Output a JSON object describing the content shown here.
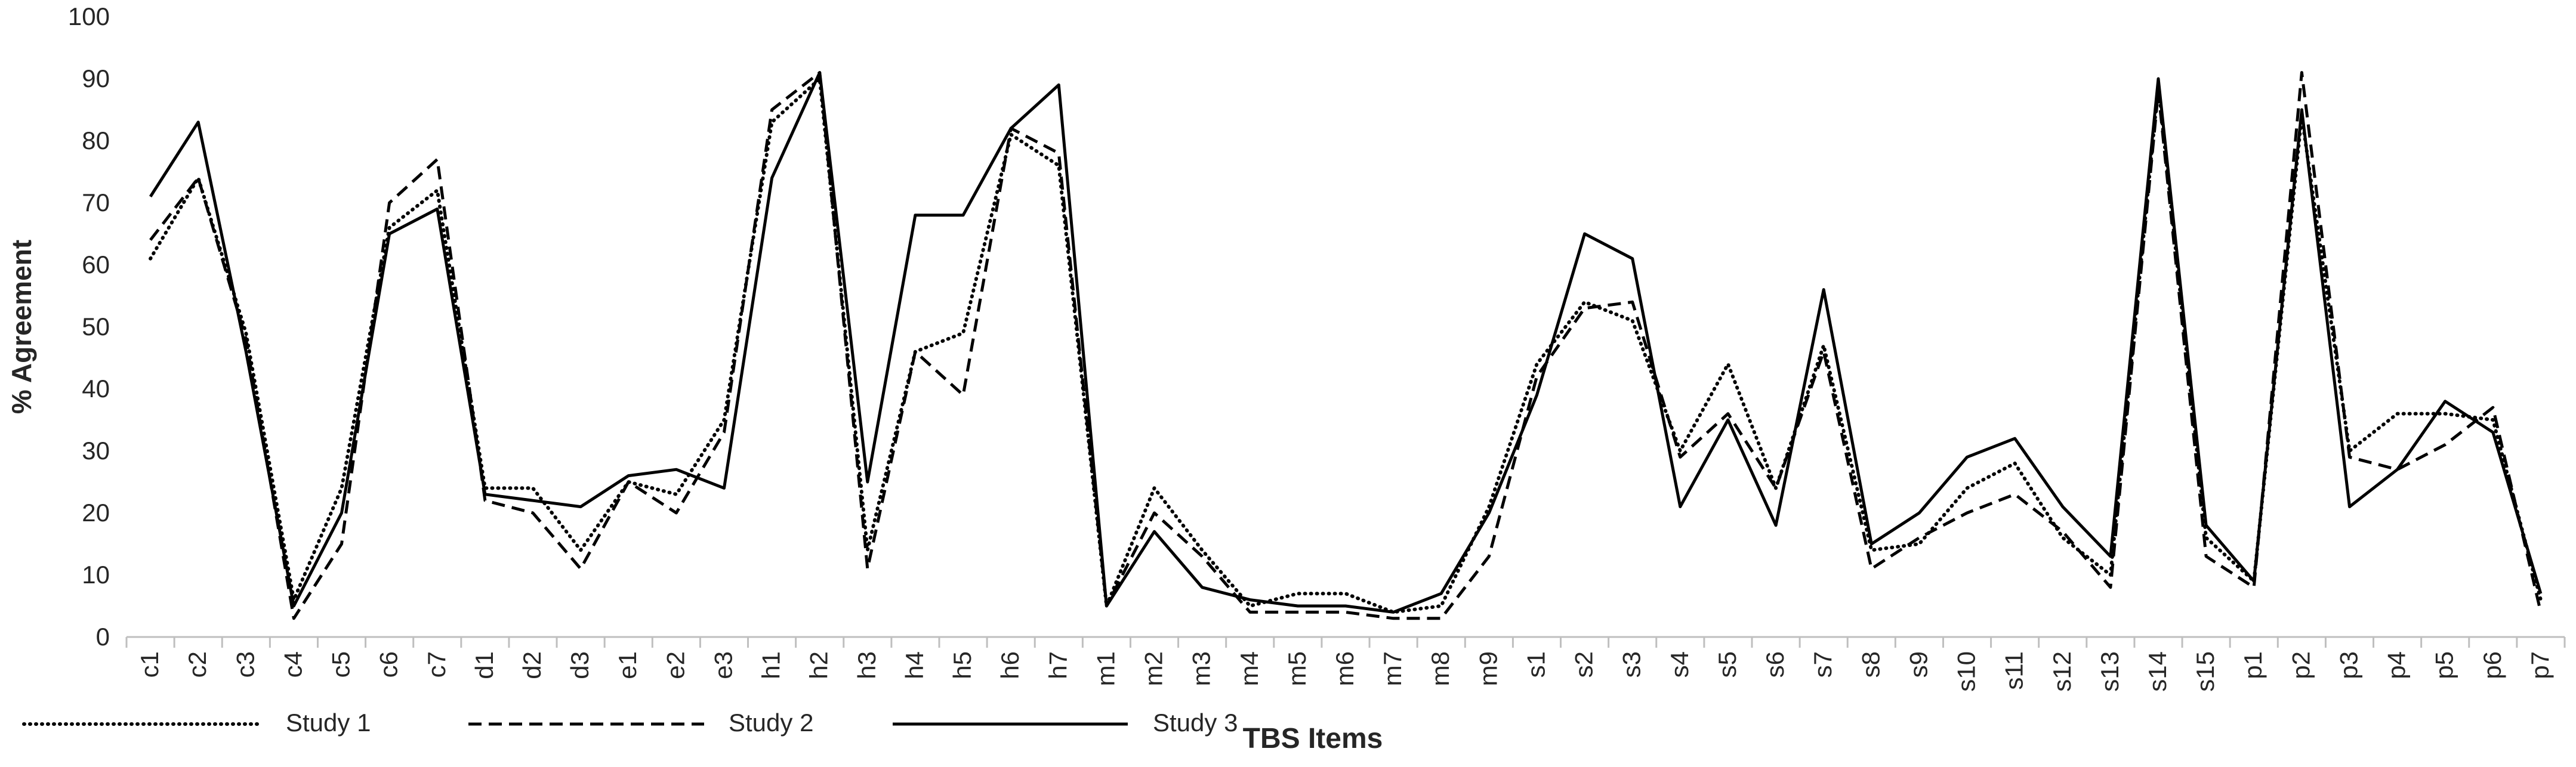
{
  "chart_data": {
    "type": "line",
    "title": "",
    "xlabel": "TBS Items",
    "ylabel": "% Agreement",
    "ylim": [
      0,
      100
    ],
    "yticks": [
      0,
      10,
      20,
      30,
      40,
      50,
      60,
      70,
      80,
      90,
      100
    ],
    "grid": false,
    "legend": "bottom-left",
    "categories": [
      "c1",
      "c2",
      "c3",
      "c4",
      "c5",
      "c6",
      "c7",
      "d1",
      "d2",
      "d3",
      "e1",
      "e2",
      "e3",
      "h1",
      "h2",
      "h3",
      "h4",
      "h5",
      "h6",
      "h7",
      "m1",
      "m2",
      "m3",
      "m4",
      "m5",
      "m6",
      "m7",
      "m8",
      "m9",
      "s1",
      "s2",
      "s3",
      "s4",
      "s5",
      "s6",
      "s7",
      "s8",
      "s9",
      "s10",
      "s11",
      "s12",
      "s13",
      "s14",
      "s15",
      "p1",
      "p2",
      "p3",
      "p4",
      "p5",
      "p6",
      "p7"
    ],
    "series": [
      {
        "name": "Study 1",
        "dash": "dotted",
        "values": [
          61,
          74,
          49,
          6,
          24,
          66,
          72,
          24,
          24,
          14,
          25,
          23,
          35,
          83,
          90,
          14,
          46,
          49,
          81,
          76,
          5,
          24,
          14,
          5,
          7,
          7,
          4,
          5,
          21,
          44,
          54,
          51,
          30,
          44,
          24,
          47,
          14,
          15,
          24,
          28,
          16,
          10,
          89,
          16,
          9,
          84,
          30,
          36,
          36,
          35,
          6
        ]
      },
      {
        "name": "Study 2",
        "dash": "dashed",
        "values": [
          64,
          74,
          48,
          3,
          15,
          70,
          77,
          22,
          20,
          11,
          25,
          20,
          33,
          85,
          91,
          11,
          46,
          39,
          82,
          78,
          5,
          20,
          13,
          4,
          4,
          4,
          3,
          3,
          13,
          42,
          53,
          54,
          29,
          36,
          24,
          46,
          11,
          16,
          20,
          23,
          17,
          8,
          88,
          13,
          8,
          91,
          29,
          27,
          31,
          37,
          4
        ]
      },
      {
        "name": "Study 3",
        "dash": "solid",
        "values": [
          71,
          83,
          46,
          5,
          20,
          65,
          69,
          23,
          22,
          21,
          26,
          27,
          24,
          74,
          91,
          25,
          68,
          68,
          82,
          89,
          5,
          17,
          8,
          6,
          5,
          5,
          4,
          7,
          20,
          39,
          65,
          61,
          21,
          35,
          18,
          56,
          15,
          20,
          29,
          32,
          21,
          13,
          90,
          18,
          9,
          85,
          21,
          27,
          38,
          33,
          7
        ]
      }
    ]
  }
}
